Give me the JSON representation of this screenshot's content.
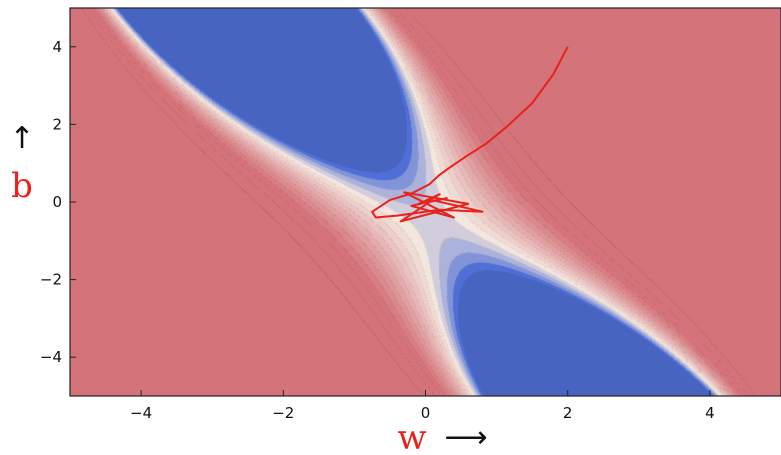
{
  "chart_data": {
    "type": "contour",
    "title": "",
    "xlabel": "w",
    "ylabel": "b",
    "xlabel_color": "#e8221c",
    "ylabel_color": "#e8221c",
    "x_arrow": "⟶",
    "y_arrow": "↑",
    "xlim": [
      -5,
      5
    ],
    "ylim": [
      -5,
      5
    ],
    "xticks": [
      -4,
      -2,
      0,
      2,
      4
    ],
    "yticks": [
      -4,
      -2,
      0,
      2,
      4
    ],
    "xtick_labels": [
      "−4",
      "−2",
      "0",
      "2",
      "4"
    ],
    "ytick_labels": [
      "−4",
      "−2",
      "0",
      "2",
      "4"
    ],
    "grid": false,
    "colormap": {
      "low": "#4f6fd6",
      "mid": "#f3e6df",
      "high": "#d4737a"
    },
    "minimum": {
      "w": 0.1,
      "b": -0.5
    },
    "trajectory_color": "#e8221c",
    "trajectory": {
      "w": [
        2.0,
        1.8,
        1.5,
        1.15,
        0.85,
        0.55,
        0.35,
        0.2,
        0.05,
        -0.2,
        -0.5,
        -0.75,
        -0.7,
        -0.4,
        0.2,
        0.8,
        0.1,
        -0.35,
        0.6,
        -0.3,
        0.4,
        -0.2,
        0.3,
        -0.1,
        0.2,
        0.0,
        0.1
      ],
      "b": [
        4.0,
        3.3,
        2.55,
        1.95,
        1.5,
        1.15,
        0.9,
        0.7,
        0.45,
        0.22,
        0.05,
        -0.25,
        -0.4,
        -0.35,
        -0.2,
        -0.25,
        0.05,
        -0.5,
        -0.05,
        0.25,
        -0.4,
        -0.1,
        0.1,
        -0.05,
        0.2,
        0.0,
        0.1
      ]
    }
  }
}
